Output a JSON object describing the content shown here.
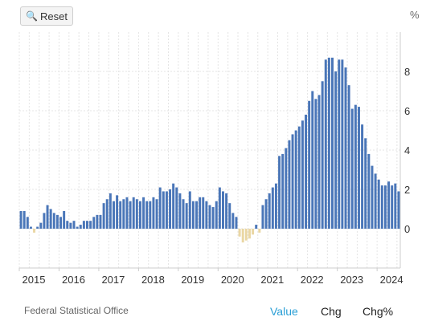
{
  "toolbar": {
    "reset_label": "Reset",
    "reset_icon": "search-icon"
  },
  "unit_label": "%",
  "source": "Federal Statistical Office",
  "tabs": {
    "value": "Value",
    "chg": "Chg",
    "chgp": "Chg%"
  },
  "colors": {
    "positive": "#4a76b8",
    "negative": "#ead7a4",
    "grid": "#e4e4e4",
    "active_tab": "#2a9fd6"
  },
  "chart_data": {
    "type": "bar",
    "ylim": [
      -2,
      10
    ],
    "y_ticks": [
      0,
      2,
      4,
      6,
      8
    ],
    "grid": "on",
    "x_tick_labels": [
      "2015",
      "2016",
      "2017",
      "2018",
      "2019",
      "2020",
      "2021",
      "2022",
      "2023",
      "2024"
    ],
    "start": "2015-01",
    "end": "2024-07",
    "values": [
      0.9,
      0.9,
      0.6,
      0.1,
      -0.2,
      0.1,
      0.3,
      0.8,
      1.2,
      1.0,
      0.8,
      0.7,
      0.6,
      0.9,
      0.4,
      0.3,
      0.4,
      0.1,
      0.2,
      0.4,
      0.4,
      0.4,
      0.6,
      0.7,
      0.7,
      1.3,
      1.5,
      1.8,
      1.4,
      1.7,
      1.4,
      1.5,
      1.6,
      1.4,
      1.6,
      1.5,
      1.4,
      1.6,
      1.4,
      1.4,
      1.6,
      1.5,
      2.1,
      1.9,
      1.9,
      2.0,
      2.3,
      2.1,
      1.8,
      1.5,
      1.3,
      1.9,
      1.4,
      1.4,
      1.6,
      1.6,
      1.4,
      1.2,
      1.1,
      1.4,
      2.1,
      1.9,
      1.8,
      1.3,
      0.8,
      0.6,
      -0.4,
      -0.7,
      -0.6,
      -0.5,
      -0.3,
      0.2,
      -0.2,
      1.2,
      1.5,
      1.8,
      2.1,
      2.3,
      3.7,
      3.8,
      4.1,
      4.5,
      4.8,
      5.0,
      5.2,
      5.5,
      5.8,
      6.5,
      7.0,
      6.6,
      6.8,
      7.5,
      8.6,
      8.7,
      8.7,
      8.0,
      8.6,
      8.6,
      8.2,
      7.3,
      6.1,
      6.3,
      6.2,
      5.3,
      4.6,
      3.8,
      3.2,
      2.8,
      2.5,
      2.2,
      2.2,
      2.4,
      2.2,
      2.3,
      1.9
    ]
  }
}
